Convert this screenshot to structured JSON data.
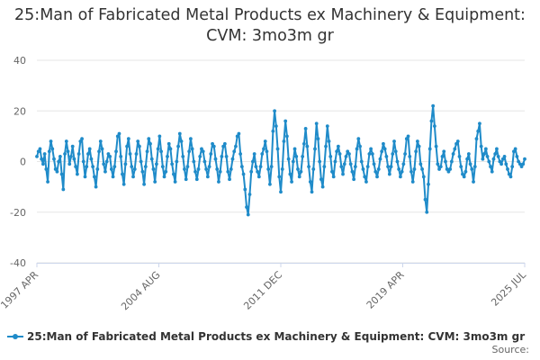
{
  "chart_data": {
    "type": "line",
    "title": "25:Man of Fabricated Metal Products ex Machinery & Equipment: CVM: 3mo3m gr",
    "xlabel": "",
    "ylabel": "",
    "ylim": [
      -40,
      40
    ],
    "y_ticks": [
      40,
      20,
      0,
      -20,
      -40
    ],
    "x_tick_labels": [
      "1997 APR",
      "2004 AUG",
      "2011 DEC",
      "2019 APR",
      "2025 JUL"
    ],
    "grid": "horizontal",
    "legend_position": "bottom",
    "source_label": "Source:",
    "series": [
      {
        "name": "25:Man of Fabricated Metal Products ex Machinery & Equipment: CVM: 3mo3m gr",
        "color": "#1f8bc9",
        "x_range": [
          "1997 APR",
          "2025 JUL"
        ],
        "values": [
          2,
          4,
          5,
          1,
          -1,
          3,
          -3,
          -8,
          4,
          8,
          5,
          1,
          -3,
          -4,
          0,
          2,
          -5,
          -11,
          3,
          8,
          4,
          -1,
          2,
          6,
          1,
          -2,
          -5,
          3,
          8,
          9,
          0,
          -6,
          -2,
          3,
          5,
          1,
          -2,
          -6,
          -10,
          -3,
          4,
          8,
          5,
          -1,
          -4,
          0,
          3,
          2,
          -3,
          -6,
          -2,
          4,
          10,
          11,
          2,
          -5,
          -9,
          -1,
          6,
          9,
          3,
          -2,
          -6,
          -3,
          3,
          8,
          6,
          0,
          -4,
          -9,
          -2,
          4,
          9,
          7,
          1,
          -3,
          -8,
          -1,
          5,
          10,
          4,
          -2,
          -6,
          -4,
          2,
          7,
          5,
          -1,
          -5,
          -8,
          0,
          6,
          11,
          8,
          2,
          -3,
          -7,
          -2,
          4,
          9,
          5,
          0,
          -4,
          -7,
          -3,
          2,
          5,
          4,
          0,
          -3,
          -6,
          -2,
          3,
          7,
          6,
          1,
          -3,
          -8,
          -4,
          2,
          6,
          7,
          2,
          -4,
          -7,
          -3,
          1,
          4,
          6,
          10,
          11,
          3,
          -2,
          -5,
          -11,
          -18,
          -21,
          -13,
          -4,
          0,
          3,
          -2,
          -4,
          -6,
          -2,
          3,
          5,
          8,
          4,
          -3,
          -9,
          -2,
          12,
          20,
          14,
          5,
          -6,
          -12,
          -3,
          8,
          16,
          10,
          1,
          -5,
          -8,
          0,
          5,
          2,
          -3,
          -6,
          -4,
          2,
          7,
          13,
          6,
          -2,
          -8,
          -12,
          -3,
          5,
          15,
          9,
          0,
          -7,
          -10,
          -2,
          6,
          14,
          8,
          2,
          -4,
          -6,
          0,
          4,
          6,
          3,
          -2,
          -5,
          -1,
          2,
          4,
          3,
          -1,
          -4,
          -7,
          -2,
          5,
          9,
          6,
          0,
          -3,
          -6,
          -8,
          -2,
          3,
          5,
          3,
          -1,
          -4,
          -6,
          -3,
          1,
          4,
          7,
          5,
          2,
          -2,
          -5,
          -2,
          3,
          8,
          4,
          0,
          -3,
          -6,
          -4,
          -1,
          3,
          9,
          10,
          2,
          -4,
          -8,
          -3,
          4,
          8,
          6,
          -1,
          -3,
          -6,
          -15,
          -20,
          -9,
          5,
          16,
          22,
          14,
          6,
          -1,
          -3,
          -2,
          2,
          4,
          0,
          -3,
          -4,
          -3,
          0,
          3,
          5,
          7,
          8,
          2,
          -2,
          -5,
          -6,
          -4,
          1,
          3,
          -1,
          -3,
          -8,
          -2,
          9,
          12,
          15,
          6,
          1,
          3,
          5,
          2,
          0,
          -2,
          -4,
          1,
          3,
          5,
          2,
          0,
          -1,
          1,
          2,
          -1,
          -3,
          -5,
          -6,
          -2,
          4,
          5,
          2,
          0,
          -1,
          -2,
          -1,
          1
        ]
      }
    ]
  }
}
